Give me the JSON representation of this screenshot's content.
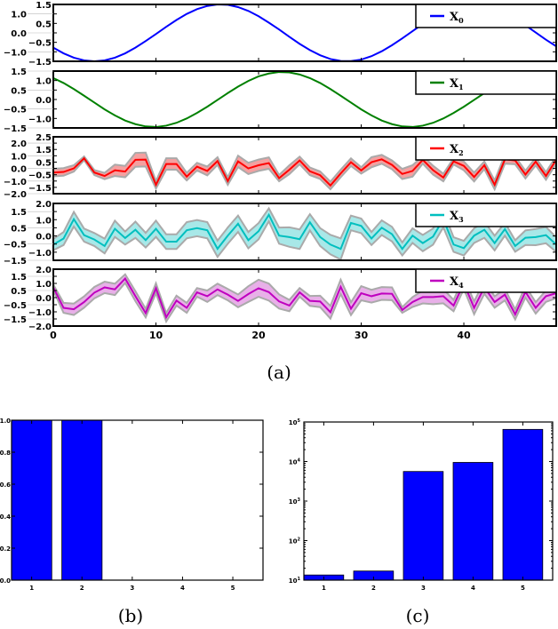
{
  "captions": {
    "a": "(a)",
    "b": "(b)",
    "c": "(c)"
  },
  "chart_data": [
    {
      "type": "line",
      "title": "",
      "x": [
        0,
        1,
        2,
        3,
        4,
        5,
        6,
        7,
        8,
        9,
        10,
        11,
        12,
        13,
        14,
        15,
        16,
        17,
        18,
        19,
        20,
        21,
        22,
        23,
        24,
        25,
        26,
        27,
        28,
        29,
        30,
        31,
        32,
        33,
        34,
        35,
        36,
        37,
        38,
        39,
        40,
        41,
        42,
        43,
        44,
        45,
        46,
        47,
        48,
        49
      ],
      "xlim": [
        0,
        49
      ],
      "xticks": [
        "0",
        "10",
        "20",
        "30",
        "40"
      ],
      "xtick_values": [
        0,
        10,
        20,
        30,
        40
      ],
      "legend_placement": "top-right",
      "panels": [
        {
          "name": "X0",
          "label_main": "X",
          "label_sub": "0",
          "color": "#0000ff",
          "ylim": [
            -1.5,
            1.5
          ],
          "yticks": [
            "1.5",
            "1.0",
            "0.5",
            "0.0",
            "−0.5",
            "−1.0",
            "−1.5"
          ],
          "ytick_values": [
            1.5,
            1.0,
            0.5,
            0.0,
            -0.5,
            -1.0,
            -1.5
          ],
          "values": [
            -0.78,
            -1.08,
            -1.31,
            -1.45,
            -1.5,
            -1.45,
            -1.31,
            -1.08,
            -0.78,
            -0.43,
            -0.06,
            0.32,
            0.68,
            1.0,
            1.25,
            1.42,
            1.5,
            1.48,
            1.36,
            1.16,
            0.88,
            0.54,
            0.18,
            -0.21,
            -0.58,
            -0.91,
            -1.18,
            -1.38,
            -1.48,
            -1.49,
            -1.41,
            -1.23,
            -0.97,
            -0.65,
            -0.29,
            0.09,
            0.47,
            0.81,
            1.1,
            1.33,
            1.46,
            1.5,
            1.44,
            1.29,
            1.06,
            0.75,
            0.4,
            0.02,
            -0.36,
            -0.71
          ]
        },
        {
          "name": "X1",
          "label_main": "X",
          "label_sub": "1",
          "color": "#008000",
          "ylim": [
            -1.5,
            1.5
          ],
          "yticks": [
            "1.5",
            "1.0",
            "0.5",
            "0.0",
            "−0.5",
            "−1.0",
            "−1.5"
          ],
          "ytick_values": [
            1.5,
            1.0,
            0.5,
            0.0,
            -0.5,
            -1.0,
            -1.5
          ],
          "values": [
            1.13,
            0.87,
            0.55,
            0.2,
            -0.16,
            -0.52,
            -0.84,
            -1.11,
            -1.3,
            -1.42,
            -1.45,
            -1.38,
            -1.23,
            -1.0,
            -0.71,
            -0.38,
            -0.02,
            0.34,
            0.68,
            0.98,
            1.22,
            1.37,
            1.45,
            1.43,
            1.32,
            1.13,
            0.87,
            0.55,
            0.2,
            -0.16,
            -0.52,
            -0.84,
            -1.11,
            -1.3,
            -1.42,
            -1.45,
            -1.38,
            -1.23,
            -1.0,
            -0.71,
            -0.38,
            -0.02,
            0.34,
            0.68,
            0.98,
            1.22,
            1.37,
            1.45,
            1.43,
            1.32
          ]
        },
        {
          "name": "X2",
          "label_main": "X",
          "label_sub": "2",
          "color": "#ff0000",
          "band_color": "#f4a0a0",
          "ylim": [
            -2.0,
            2.5
          ],
          "yticks": [
            "2.5",
            "2.0",
            "1.5",
            "1.0",
            "0.5",
            "0.0",
            "−0.5",
            "−1.0",
            "−1.5",
            "−2.0"
          ],
          "ytick_values": [
            2.5,
            2.0,
            1.5,
            1.0,
            0.5,
            0.0,
            -0.5,
            -1.0,
            -1.5,
            -2.0
          ],
          "values": [
            -0.33,
            -0.28,
            0.0,
            0.8,
            -0.33,
            -0.6,
            -0.15,
            -0.25,
            0.68,
            0.7,
            -1.3,
            0.35,
            0.35,
            -0.65,
            0.14,
            -0.2,
            0.58,
            -1.0,
            0.56,
            0.0,
            0.25,
            0.42,
            -0.77,
            -0.1,
            0.63,
            -0.23,
            -0.54,
            -1.35,
            -0.4,
            0.49,
            -0.16,
            0.49,
            0.72,
            0.28,
            -0.44,
            -0.2,
            0.68,
            -0.14,
            -0.72,
            0.56,
            0.2,
            -0.68,
            0.25,
            -1.3,
            0.72,
            0.63,
            -0.49,
            0.54,
            -0.6,
            0.68
          ],
          "err": [
            0.3,
            0.3,
            0.25,
            0.15,
            0.2,
            0.25,
            0.45,
            0.45,
            0.55,
            0.55,
            0.3,
            0.45,
            0.45,
            0.3,
            0.3,
            0.35,
            0.3,
            0.3,
            0.45,
            0.45,
            0.45,
            0.45,
            0.25,
            0.35,
            0.3,
            0.3,
            0.3,
            0.3,
            0.3,
            0.3,
            0.25,
            0.4,
            0.35,
            0.35,
            0.4,
            0.45,
            0.3,
            0.35,
            0.3,
            0.25,
            0.35,
            0.35,
            0.3,
            0.35,
            0.35,
            0.3,
            0.3,
            0.3,
            0.3,
            0.3
          ]
        },
        {
          "name": "X3",
          "label_main": "X",
          "label_sub": "3",
          "color": "#00bfbf",
          "band_color": "#a8e8e8",
          "ylim": [
            -1.5,
            2.0
          ],
          "yticks": [
            "2.0",
            "1.5",
            "1.0",
            "0.5",
            "0.0",
            "−0.5",
            "−1.0",
            "−1.5"
          ],
          "ytick_values": [
            2.0,
            1.5,
            1.0,
            0.5,
            0.0,
            -0.5,
            -1.0,
            -1.5
          ],
          "values": [
            -0.53,
            -0.16,
            1.03,
            0.05,
            -0.22,
            -0.62,
            0.44,
            -0.13,
            0.38,
            -0.26,
            0.44,
            -0.35,
            -0.35,
            0.35,
            0.48,
            0.35,
            -0.79,
            0.02,
            0.75,
            -0.26,
            0.29,
            1.3,
            0.02,
            -0.07,
            -0.2,
            0.84,
            -0.07,
            -0.53,
            -0.8,
            0.8,
            0.62,
            -0.16,
            0.51,
            0.11,
            -0.8,
            0.02,
            -0.44,
            -0.04,
            1.03,
            -0.53,
            -0.75,
            0.02,
            0.38,
            -0.44,
            0.42,
            -0.62,
            -0.11,
            -0.07,
            0.05,
            -0.53
          ],
          "err": [
            0.35,
            0.4,
            0.45,
            0.4,
            0.4,
            0.45,
            0.5,
            0.4,
            0.5,
            0.45,
            0.5,
            0.45,
            0.45,
            0.5,
            0.5,
            0.5,
            0.5,
            0.5,
            0.5,
            0.5,
            0.5,
            0.4,
            0.5,
            0.6,
            0.6,
            0.5,
            0.55,
            0.6,
            0.65,
            0.45,
            0.45,
            0.4,
            0.45,
            0.45,
            0.4,
            0.45,
            0.5,
            0.5,
            0.5,
            0.45,
            0.45,
            0.45,
            0.5,
            0.45,
            0.4,
            0.35,
            0.45,
            0.5,
            0.5,
            0.45
          ]
        },
        {
          "name": "X4",
          "label_main": "X",
          "label_sub": "4",
          "color": "#bf00bf",
          "band_color": "#e8b0e8",
          "ylim": [
            -2.0,
            2.0
          ],
          "yticks": [
            "2.0",
            "1.5",
            "1.0",
            "0.5",
            "0.0",
            "−0.5",
            "−1.0",
            "−1.5",
            "−2.0"
          ],
          "ytick_values": [
            2.0,
            1.5,
            1.0,
            0.5,
            0.0,
            -0.5,
            -1.0,
            -1.5,
            -2.0
          ],
          "values": [
            0.72,
            -0.72,
            -0.82,
            -0.31,
            0.35,
            0.72,
            0.58,
            1.34,
            0.1,
            -1.09,
            0.66,
            -1.38,
            -0.21,
            -0.72,
            0.37,
            0.1,
            0.58,
            0.21,
            -0.23,
            0.25,
            0.66,
            0.39,
            -0.27,
            -0.56,
            0.37,
            -0.23,
            -0.27,
            -1.03,
            0.76,
            -0.78,
            0.31,
            0.1,
            0.29,
            0.27,
            -0.87,
            -0.31,
            0.04,
            0.04,
            0.1,
            -0.56,
            1.01,
            -0.72,
            0.72,
            -0.31,
            0.21,
            -1.18,
            0.41,
            -0.72,
            0.1,
            0.31
          ],
          "err": [
            0.2,
            0.35,
            0.4,
            0.4,
            0.4,
            0.4,
            0.4,
            0.3,
            0.35,
            0.3,
            0.35,
            0.3,
            0.35,
            0.35,
            0.3,
            0.4,
            0.4,
            0.4,
            0.45,
            0.55,
            0.6,
            0.6,
            0.5,
            0.4,
            0.3,
            0.35,
            0.4,
            0.45,
            0.5,
            0.45,
            0.5,
            0.45,
            0.45,
            0.45,
            0.2,
            0.35,
            0.45,
            0.5,
            0.5,
            0.4,
            0.4,
            0.45,
            0.45,
            0.4,
            0.4,
            0.35,
            0.4,
            0.4,
            0.4,
            0.35
          ]
        }
      ]
    },
    {
      "type": "bar",
      "title": "",
      "categories": [
        "1",
        "2",
        "3",
        "4",
        "5"
      ],
      "values": [
        1.0,
        1.0,
        0.0,
        0.0,
        0.0
      ],
      "xlim": [
        0.6,
        5.6
      ],
      "ylim": [
        0.0,
        1.0
      ],
      "yticks": [
        "1.0",
        "0.8",
        "0.6",
        "0.4",
        "0.2",
        "0.0"
      ],
      "ytick_values": [
        1.0,
        0.8,
        0.6,
        0.4,
        0.2,
        0.0
      ],
      "color": "#0000ff",
      "xlabel": "",
      "ylabel": ""
    },
    {
      "type": "bar",
      "title": "",
      "yscale": "log",
      "categories": [
        "1",
        "2",
        "3",
        "4",
        "5"
      ],
      "values": [
        13.5,
        17,
        5600,
        9500,
        65000
      ],
      "xlim": [
        0.6,
        5.6
      ],
      "ylim": [
        10,
        100000
      ],
      "yticks": [
        {
          "base": "10",
          "exp": "5"
        },
        {
          "base": "10",
          "exp": "4"
        },
        {
          "base": "10",
          "exp": "3"
        },
        {
          "base": "10",
          "exp": "2"
        },
        {
          "base": "10",
          "exp": "1"
        }
      ],
      "ytick_values": [
        100000,
        10000,
        1000,
        100,
        10
      ],
      "color": "#0000ff",
      "xlabel": "",
      "ylabel": ""
    }
  ]
}
